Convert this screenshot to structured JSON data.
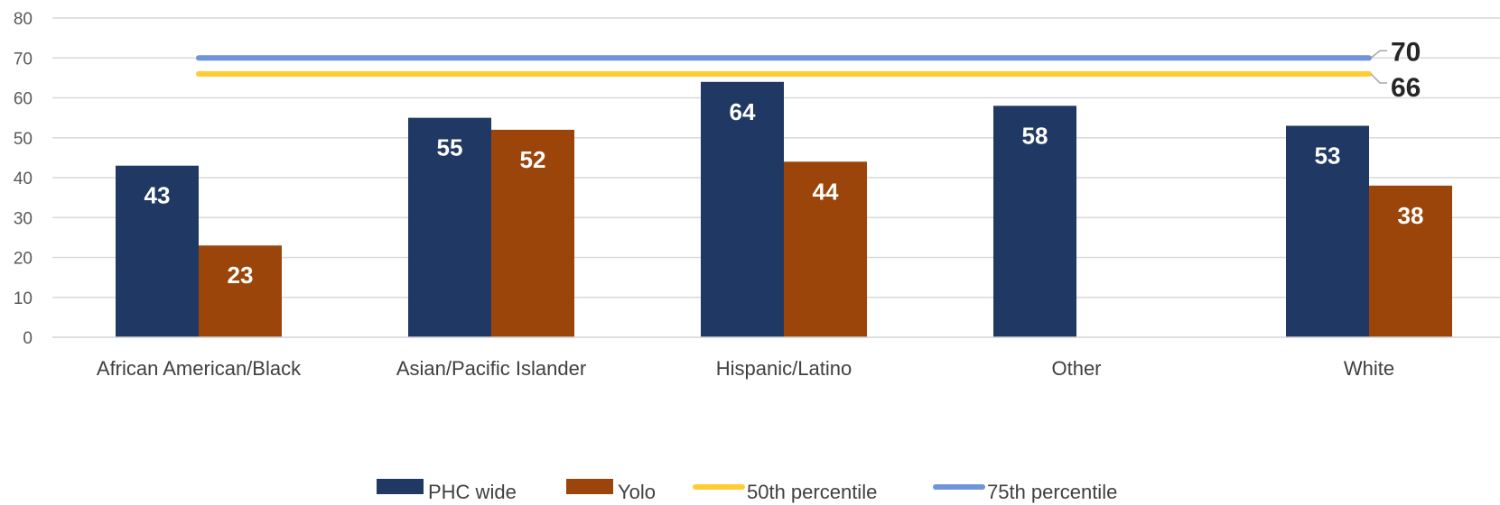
{
  "chart_data": {
    "type": "bar",
    "categories": [
      "African American/Black",
      "Asian/Pacific Islander",
      "Hispanic/Latino",
      "Other",
      "White"
    ],
    "series": [
      {
        "name": "PHC  wide",
        "values": [
          43,
          55,
          64,
          58,
          53
        ],
        "color": "#203864"
      },
      {
        "name": "Yolo",
        "values": [
          23,
          52,
          44,
          null,
          38
        ],
        "color": "#9C450B"
      }
    ],
    "reference_lines": [
      {
        "name": "50th percentile",
        "value": 66,
        "label": "66",
        "color": "#FFCC33"
      },
      {
        "name": "75th percentile",
        "value": 70,
        "label": "70",
        "color": "#6F94D8"
      }
    ],
    "y_ticks": [
      "0",
      "10",
      "20",
      "30",
      "40",
      "50",
      "60",
      "70",
      "80"
    ],
    "ylim": [
      0,
      80
    ],
    "grid": true,
    "legend_position": "bottom",
    "title": "",
    "xlabel": "",
    "ylabel": ""
  }
}
